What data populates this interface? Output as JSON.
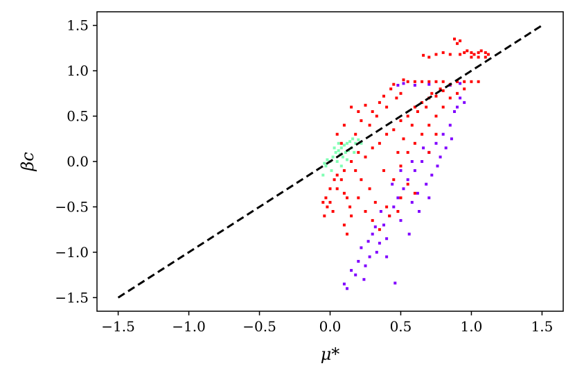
{
  "chart_data": {
    "type": "scatter",
    "title": "",
    "xlabel": "μ*",
    "ylabel": "βc",
    "xlim": [
      -1.65,
      1.65
    ],
    "ylim": [
      -1.65,
      1.65
    ],
    "xticks": [
      -1.5,
      -1.0,
      -0.5,
      0.0,
      0.5,
      1.0,
      1.5
    ],
    "yticks": [
      -1.5,
      -1.0,
      -0.5,
      0.0,
      0.5,
      1.0,
      1.5
    ],
    "xtick_labels": [
      "−1.5",
      "−1.0",
      "−0.5",
      "0.0",
      "0.5",
      "1.0",
      "1.5"
    ],
    "ytick_labels": [
      "−1.5",
      "−1.0",
      "−0.5",
      "0.0",
      "0.5",
      "1.0",
      "1.5"
    ],
    "grid": false,
    "reference_line": {
      "style": "dashed",
      "color": "#000000",
      "x": [
        -1.5,
        1.5
      ],
      "y": [
        -1.5,
        1.5
      ]
    },
    "series": [
      {
        "color": "#8000ff",
        "points": [
          [
            0.12,
            -1.4
          ],
          [
            0.1,
            -1.35
          ],
          [
            0.15,
            -1.2
          ],
          [
            0.2,
            -1.1
          ],
          [
            0.22,
            -0.95
          ],
          [
            0.25,
            -1.15
          ],
          [
            0.28,
            -1.05
          ],
          [
            0.3,
            -0.8
          ],
          [
            0.33,
            -1.0
          ],
          [
            0.35,
            -0.9
          ],
          [
            0.38,
            -0.7
          ],
          [
            0.4,
            -0.85
          ],
          [
            0.42,
            -0.6
          ],
          [
            0.46,
            -1.34
          ],
          [
            0.45,
            -0.5
          ],
          [
            0.48,
            -0.4
          ],
          [
            0.5,
            -0.65
          ],
          [
            0.52,
            -0.3
          ],
          [
            0.55,
            -0.2
          ],
          [
            0.58,
            -0.45
          ],
          [
            0.6,
            -0.1
          ],
          [
            0.62,
            -0.35
          ],
          [
            0.65,
            0.0
          ],
          [
            0.68,
            -0.25
          ],
          [
            0.7,
            0.1
          ],
          [
            0.72,
            -0.15
          ],
          [
            0.75,
            0.2
          ],
          [
            0.78,
            0.05
          ],
          [
            0.8,
            0.3
          ],
          [
            0.82,
            0.15
          ],
          [
            0.85,
            0.4
          ],
          [
            0.88,
            0.55
          ],
          [
            0.9,
            0.6
          ],
          [
            0.92,
            0.7
          ],
          [
            0.95,
            0.65
          ],
          [
            0.66,
            0.15
          ],
          [
            0.58,
            0.0
          ],
          [
            0.5,
            -0.1
          ],
          [
            0.44,
            -0.25
          ],
          [
            0.36,
            -0.55
          ],
          [
            0.32,
            -0.72
          ],
          [
            0.27,
            -0.88
          ],
          [
            0.48,
            0.84
          ],
          [
            0.52,
            0.86
          ],
          [
            0.6,
            0.84
          ],
          [
            0.7,
            0.85
          ],
          [
            0.85,
            0.84
          ],
          [
            0.92,
            0.86
          ],
          [
            0.63,
            -0.55
          ],
          [
            0.56,
            -0.8
          ],
          [
            0.7,
            -0.4
          ],
          [
            0.76,
            -0.05
          ],
          [
            0.86,
            0.25
          ],
          [
            0.24,
            -1.3
          ],
          [
            0.18,
            -1.25
          ],
          [
            0.4,
            -1.05
          ]
        ]
      },
      {
        "color": "#80ffb4",
        "points": [
          [
            -0.05,
            -0.15
          ],
          [
            -0.03,
            -0.05
          ],
          [
            0.0,
            0.0
          ],
          [
            0.02,
            0.05
          ],
          [
            0.04,
            0.1
          ],
          [
            0.06,
            0.12
          ],
          [
            0.08,
            0.15
          ],
          [
            0.1,
            0.18
          ],
          [
            0.12,
            0.2
          ],
          [
            0.14,
            0.22
          ],
          [
            0.16,
            0.25
          ],
          [
            0.18,
            0.2
          ],
          [
            0.05,
            0.0
          ],
          [
            0.07,
            0.08
          ],
          [
            0.09,
            0.05
          ],
          [
            0.11,
            0.1
          ],
          [
            0.13,
            0.12
          ],
          [
            0.01,
            -0.1
          ],
          [
            -0.02,
            0.02
          ],
          [
            0.15,
            0.15
          ],
          [
            0.17,
            0.1
          ],
          [
            0.03,
            0.15
          ],
          [
            0.06,
            0.2
          ],
          [
            0.2,
            0.24
          ],
          [
            0.22,
            0.2
          ],
          [
            0.08,
            -0.05
          ],
          [
            -0.04,
            -0.02
          ],
          [
            0.12,
            0.02
          ]
        ]
      },
      {
        "color": "#ff0000",
        "points": [
          [
            -0.05,
            -0.45
          ],
          [
            -0.03,
            -0.4
          ],
          [
            -0.02,
            -0.5
          ],
          [
            0.0,
            -0.45
          ],
          [
            -0.04,
            -0.6
          ],
          [
            0.02,
            -0.55
          ],
          [
            0.05,
            -0.3
          ],
          [
            0.08,
            -0.2
          ],
          [
            0.1,
            -0.35
          ],
          [
            0.12,
            -0.4
          ],
          [
            0.14,
            -0.5
          ],
          [
            0.1,
            -0.7
          ],
          [
            0.12,
            -0.8
          ],
          [
            0.15,
            -0.6
          ],
          [
            0.15,
            0.0
          ],
          [
            0.18,
            -0.1
          ],
          [
            0.2,
            0.1
          ],
          [
            0.22,
            -0.2
          ],
          [
            0.25,
            0.05
          ],
          [
            0.28,
            -0.3
          ],
          [
            0.3,
            0.15
          ],
          [
            0.32,
            -0.45
          ],
          [
            0.35,
            0.2
          ],
          [
            0.38,
            -0.1
          ],
          [
            0.4,
            0.3
          ],
          [
            0.42,
            -0.6
          ],
          [
            0.45,
            0.35
          ],
          [
            0.48,
            0.1
          ],
          [
            0.5,
            0.45
          ],
          [
            0.52,
            0.25
          ],
          [
            0.55,
            0.5
          ],
          [
            0.58,
            0.4
          ],
          [
            0.6,
            0.6
          ],
          [
            0.62,
            0.55
          ],
          [
            0.65,
            0.65
          ],
          [
            0.68,
            0.6
          ],
          [
            0.7,
            0.7
          ],
          [
            0.72,
            0.75
          ],
          [
            0.75,
            0.72
          ],
          [
            0.78,
            0.8
          ],
          [
            0.8,
            0.78
          ],
          [
            0.85,
            0.85
          ],
          [
            0.9,
            0.88
          ],
          [
            0.95,
            0.88
          ],
          [
            1.0,
            0.88
          ],
          [
            1.05,
            0.88
          ],
          [
            0.55,
            0.88
          ],
          [
            0.6,
            0.88
          ],
          [
            0.65,
            0.88
          ],
          [
            0.7,
            0.88
          ],
          [
            0.75,
            0.88
          ],
          [
            0.8,
            0.88
          ],
          [
            0.28,
            0.4
          ],
          [
            0.3,
            0.55
          ],
          [
            0.35,
            0.65
          ],
          [
            0.4,
            0.6
          ],
          [
            0.43,
            0.8
          ],
          [
            0.47,
            0.7
          ],
          [
            0.5,
            0.75
          ],
          [
            0.52,
            0.9
          ],
          [
            0.45,
            0.85
          ],
          [
            0.38,
            0.72
          ],
          [
            0.33,
            0.5
          ],
          [
            0.22,
            0.45
          ],
          [
            0.25,
            0.62
          ],
          [
            0.18,
            0.3
          ],
          [
            0.1,
            -0.1
          ],
          [
            0.05,
            -0.15
          ],
          [
            0.2,
            -0.4
          ],
          [
            0.25,
            -0.55
          ],
          [
            0.3,
            -0.65
          ],
          [
            0.35,
            -0.75
          ],
          [
            0.4,
            -0.5
          ],
          [
            0.45,
            -0.2
          ],
          [
            0.5,
            -0.05
          ],
          [
            0.55,
            0.1
          ],
          [
            0.6,
            0.2
          ],
          [
            0.65,
            0.3
          ],
          [
            0.7,
            0.4
          ],
          [
            0.75,
            0.5
          ],
          [
            0.8,
            0.6
          ],
          [
            0.85,
            0.7
          ],
          [
            0.9,
            0.75
          ],
          [
            0.95,
            0.8
          ],
          [
            0.6,
            -0.35
          ],
          [
            0.55,
            -0.25
          ],
          [
            0.5,
            -0.4
          ],
          [
            0.48,
            -0.55
          ],
          [
            0.7,
            0.1
          ],
          [
            0.75,
            0.3
          ],
          [
            0.95,
            1.2
          ],
          [
            1.0,
            1.2
          ],
          [
            1.05,
            1.2
          ],
          [
            1.1,
            1.2
          ],
          [
            1.0,
            1.15
          ],
          [
            1.05,
            1.15
          ],
          [
            1.1,
            1.15
          ],
          [
            0.92,
            1.18
          ],
          [
            0.97,
            1.22
          ],
          [
            1.02,
            1.18
          ],
          [
            1.07,
            1.22
          ],
          [
            1.12,
            1.18
          ],
          [
            0.9,
            1.3
          ],
          [
            0.88,
            1.35
          ],
          [
            0.92,
            1.33
          ],
          [
            0.7,
            1.15
          ],
          [
            0.75,
            1.18
          ],
          [
            0.8,
            1.2
          ],
          [
            0.85,
            1.18
          ],
          [
            0.66,
            1.17
          ],
          [
            0.2,
            0.55
          ],
          [
            0.1,
            0.4
          ],
          [
            0.05,
            0.3
          ],
          [
            0.15,
            0.6
          ],
          [
            0.08,
            0.2
          ],
          [
            0.0,
            -0.3
          ],
          [
            0.03,
            -0.2
          ]
        ]
      }
    ]
  }
}
